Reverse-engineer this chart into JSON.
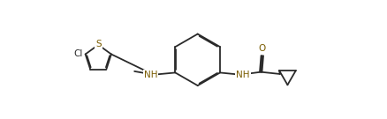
{
  "bg_color": "#ffffff",
  "bond_color": "#2a2a2a",
  "atom_color": "#7a5c00",
  "line_width": 1.3,
  "dbo": 0.008,
  "figsize": [
    4.38,
    1.35
  ],
  "dpi": 100,
  "xlim": [
    0,
    4.38
  ],
  "ylim": [
    0,
    1.35
  ]
}
